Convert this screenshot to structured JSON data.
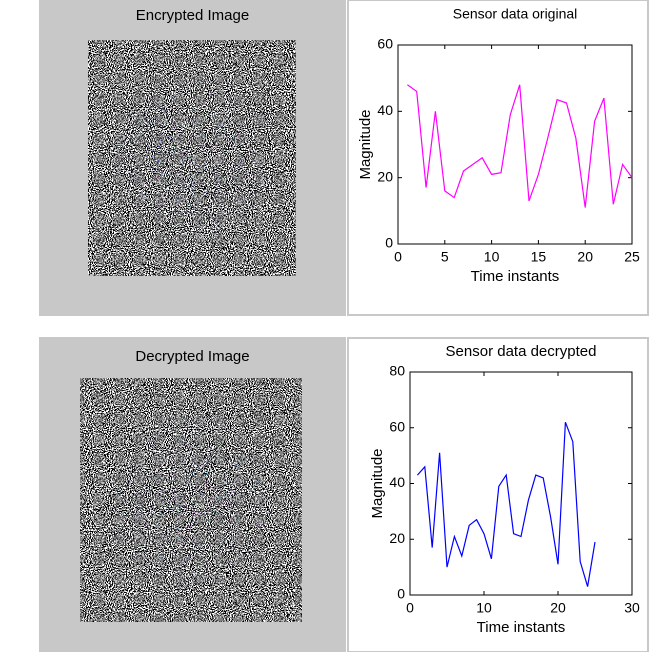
{
  "chart_data": [
    {
      "type": "image",
      "title": "Encrypted Image"
    },
    {
      "type": "line",
      "title": "Sensor data original",
      "xlabel": "Time instants",
      "ylabel": "Magnitude",
      "x": [
        1,
        2,
        3,
        4,
        5,
        6,
        7,
        8,
        9,
        10,
        11,
        12,
        13,
        14,
        15,
        16,
        17,
        18,
        19,
        20,
        21,
        22,
        23,
        24,
        25
      ],
      "series": [
        {
          "color": "#ff00ff",
          "values": [
            48,
            46,
            17,
            40,
            16,
            14,
            22,
            24,
            26,
            21,
            21.5,
            39,
            48,
            13,
            21,
            32,
            43.5,
            42.5,
            32,
            11,
            37,
            44,
            12,
            24,
            20
          ]
        }
      ],
      "xlim": [
        0,
        25
      ],
      "xticks": [
        0,
        5,
        10,
        15,
        20,
        25
      ],
      "ylim": [
        0,
        60
      ],
      "yticks": [
        0,
        20,
        40,
        60
      ],
      "grid": false
    },
    {
      "type": "image",
      "title": "Decrypted Image"
    },
    {
      "type": "line",
      "title": "Sensor data decrypted",
      "xlabel": "Time instants",
      "ylabel": "Magnitude",
      "x": [
        1,
        2,
        3,
        4,
        5,
        6,
        7,
        8,
        9,
        10,
        11,
        12,
        13,
        14,
        15,
        16,
        17,
        18,
        19,
        20,
        21,
        22,
        23,
        24,
        25
      ],
      "series": [
        {
          "color": "#0000ff",
          "values": [
            43,
            46,
            17,
            51,
            10,
            21,
            14,
            25,
            27,
            22,
            13,
            39,
            43,
            22,
            21,
            34,
            43,
            42,
            28,
            11,
            62,
            55,
            12,
            3,
            19
          ]
        }
      ],
      "xlim": [
        0,
        30
      ],
      "xticks": [
        0,
        10,
        20,
        30
      ],
      "ylim": [
        0,
        80
      ],
      "yticks": [
        0,
        20,
        40,
        60,
        80
      ],
      "grid": false
    }
  ]
}
